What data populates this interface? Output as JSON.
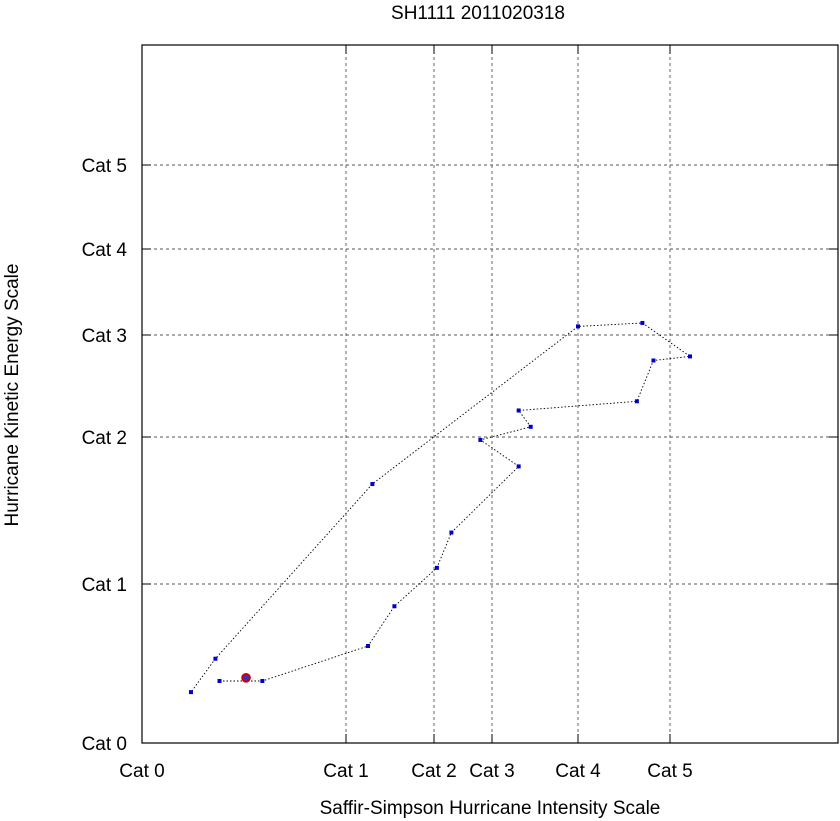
{
  "chart_data": {
    "type": "scatter",
    "title": "SH1111 2011020318",
    "xlabel": "Saffir-Simpson Hurricane Intensity Scale",
    "ylabel": "Hurricane Kinetic Energy Scale",
    "x_ticks": [
      {
        "value": 0,
        "label": "Cat 0"
      },
      {
        "value": 1,
        "label": "Cat 1"
      },
      {
        "value": 2,
        "label": "Cat 2"
      },
      {
        "value": 3,
        "label": "Cat 3"
      },
      {
        "value": 4,
        "label": "Cat 4"
      },
      {
        "value": 5,
        "label": "Cat 5"
      }
    ],
    "y_ticks": [
      {
        "value": 0,
        "label": "Cat 0"
      },
      {
        "value": 1,
        "label": "Cat 1"
      },
      {
        "value": 2,
        "label": "Cat 2"
      },
      {
        "value": 3,
        "label": "Cat 3"
      },
      {
        "value": 4,
        "label": "Cat 4"
      },
      {
        "value": 5,
        "label": "Cat 5"
      }
    ],
    "grid": true,
    "series": [
      {
        "line_style": "dotted",
        "color": "#0000cc",
        "points": [
          {
            "x": 0.38,
            "y": 0.39
          },
          {
            "x": 0.59,
            "y": 0.39
          },
          {
            "x": 1.25,
            "y": 0.61
          },
          {
            "x": 1.55,
            "y": 0.86
          },
          {
            "x": 2.05,
            "y": 1.11
          },
          {
            "x": 2.3,
            "y": 1.35
          },
          {
            "x": 3.31,
            "y": 1.8
          },
          {
            "x": 2.8,
            "y": 1.98
          },
          {
            "x": 3.45,
            "y": 2.1
          },
          {
            "x": 3.31,
            "y": 2.26
          },
          {
            "x": 4.64,
            "y": 2.35
          },
          {
            "x": 4.82,
            "y": 2.75
          },
          {
            "x": 5.22,
            "y": 2.79
          },
          {
            "x": 4.7,
            "y": 3.14
          },
          {
            "x": 4.0,
            "y": 3.1
          },
          {
            "x": 1.3,
            "y": 1.68
          },
          {
            "x": 0.36,
            "y": 0.53
          },
          {
            "x": 0.24,
            "y": 0.32
          }
        ]
      }
    ],
    "current_point": {
      "x": 0.51,
      "y": 0.41,
      "color": "#cc0000"
    }
  }
}
